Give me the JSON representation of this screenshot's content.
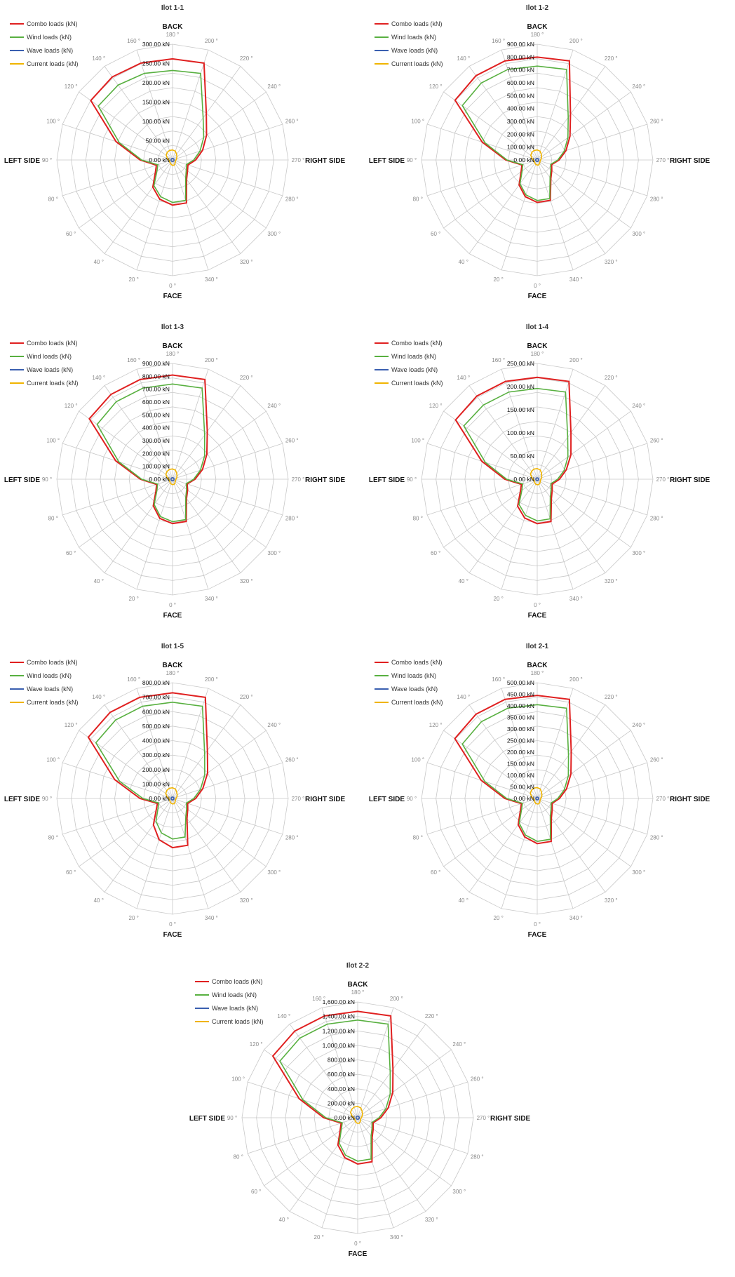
{
  "colors": {
    "combo": "#e02020",
    "wind": "#58b040",
    "wave": "#3a5fb0",
    "current": "#f0b400",
    "grid": "#c8c8c8"
  },
  "chart_data": [
    {
      "type": "radar",
      "title": "Ilot 1-1",
      "side_labels": {
        "top": "BACK",
        "bottom": "FACE",
        "left": "LEFT SIDE",
        "right": "RIGHT SIDE"
      },
      "angle_labels": [
        "0 °",
        "20 °",
        "40 °",
        "60 °",
        "80 °",
        "90 °",
        "100 °",
        "120 °",
        "140 °",
        "160 °",
        "180 °",
        "200 °",
        "220 °",
        "240 °",
        "260 °",
        "270 °",
        "280 °",
        "300 °",
        "320 °",
        "340 °"
      ],
      "radial_ticks": [
        "0.00 kN",
        "50.00 kN",
        "100.00 kN",
        "150.00 kN",
        "200.00 kN",
        "250.00 kN",
        "300.00 kN"
      ],
      "rmax": 300,
      "series": [
        {
          "name": "Combo loads (kN)",
          "color_key": "combo",
          "values": [
            117,
            107,
            87,
            55,
            44,
            84,
            154,
            262,
            266,
            264,
            262,
            264,
            149,
            109,
            82,
            60,
            42,
            48,
            62,
            117
          ]
        },
        {
          "name": "Wind loads (kN)",
          "color_key": "wind",
          "values": [
            110,
            100,
            82,
            50,
            40,
            80,
            145,
            238,
            240,
            236,
            232,
            236,
            135,
            100,
            75,
            55,
            38,
            44,
            58,
            110
          ]
        },
        {
          "name": "Wave loads (kN)",
          "color_key": "wave",
          "values": [
            4,
            4,
            4,
            4,
            4,
            4,
            4,
            4,
            4,
            4,
            4,
            4,
            4,
            4,
            4,
            4,
            4,
            4,
            4,
            4
          ]
        },
        {
          "name": "Current loads (kN)",
          "color_key": "current",
          "values": [
            14,
            12,
            10,
            9,
            8,
            10,
            14,
            20,
            24,
            26,
            26,
            24,
            18,
            14,
            11,
            9,
            8,
            9,
            11,
            14
          ]
        }
      ]
    },
    {
      "type": "radar",
      "title": "Ilot 1-2",
      "side_labels": {
        "top": "BACK",
        "bottom": "FACE",
        "left": "LEFT SIDE",
        "right": "RIGHT SIDE"
      },
      "angle_labels": [
        "0 °",
        "20 °",
        "40 °",
        "60 °",
        "80 °",
        "90 °",
        "100 °",
        "120 °",
        "140 °",
        "160 °",
        "180 °",
        "200 °",
        "220 °",
        "240 °",
        "260 °",
        "270 °",
        "280 °",
        "300 °",
        "320 °",
        "340 °"
      ],
      "radial_ticks": [
        "0.00 kN",
        "100.00 kN",
        "200.00 kN",
        "300.00 kN",
        "400.00 kN",
        "500.00 kN",
        "600.00 kN",
        "700.00 kN",
        "800.00 kN",
        "900.00 kN"
      ],
      "rmax": 900,
      "series": [
        {
          "name": "Combo loads (kN)",
          "color_key": "combo",
          "values": [
            330,
            300,
            240,
            155,
            125,
            245,
            450,
            790,
            810,
            810,
            800,
            810,
            440,
            315,
            235,
            170,
            118,
            140,
            180,
            330
          ]
        },
        {
          "name": "Wind loads (kN)",
          "color_key": "wind",
          "values": [
            315,
            285,
            228,
            145,
            118,
            235,
            425,
            720,
            740,
            740,
            730,
            740,
            410,
            295,
            220,
            160,
            110,
            130,
            170,
            315
          ]
        },
        {
          "name": "Wave loads (kN)",
          "color_key": "wave",
          "values": [
            12,
            12,
            12,
            12,
            12,
            12,
            12,
            12,
            12,
            12,
            12,
            12,
            12,
            12,
            12,
            12,
            12,
            12,
            12,
            12
          ]
        },
        {
          "name": "Current loads (kN)",
          "color_key": "current",
          "values": [
            40,
            36,
            30,
            26,
            24,
            30,
            42,
            62,
            72,
            78,
            78,
            72,
            54,
            42,
            33,
            26,
            24,
            26,
            32,
            40
          ]
        }
      ]
    },
    {
      "type": "radar",
      "title": "Ilot 1-3",
      "side_labels": {
        "top": "BACK",
        "bottom": "FACE",
        "left": "LEFT SIDE",
        "right": "RIGHT SIDE"
      },
      "angle_labels": [
        "0 °",
        "20 °",
        "40 °",
        "60 °",
        "80 °",
        "90 °",
        "100 °",
        "120 °",
        "140 °",
        "160 °",
        "180 °",
        "200 °",
        "220 °",
        "240 °",
        "260 °",
        "270 °",
        "280 °",
        "300 °",
        "320 °",
        "340 °"
      ],
      "radial_ticks": [
        "0.00 kN",
        "100.00 kN",
        "200.00 kN",
        "300.00 kN",
        "400.00 kN",
        "500.00 kN",
        "600.00 kN",
        "700.00 kN",
        "800.00 kN",
        "900.00 kN"
      ],
      "rmax": 900,
      "series": [
        {
          "name": "Combo loads (kN)",
          "color_key": "combo",
          "values": [
            345,
            320,
            255,
            160,
            130,
            250,
            465,
            800,
            815,
            815,
            810,
            815,
            460,
            330,
            245,
            175,
            120,
            145,
            185,
            345
          ]
        },
        {
          "name": "Wind loads (kN)",
          "color_key": "wind",
          "values": [
            330,
            305,
            243,
            150,
            122,
            240,
            440,
            725,
            745,
            745,
            740,
            745,
            425,
            308,
            228,
            164,
            112,
            135,
            175,
            330
          ]
        },
        {
          "name": "Wave loads (kN)",
          "color_key": "wave",
          "values": [
            12,
            12,
            12,
            12,
            12,
            12,
            12,
            12,
            12,
            12,
            12,
            12,
            12,
            12,
            12,
            12,
            12,
            12,
            12,
            12
          ]
        },
        {
          "name": "Current loads (kN)",
          "color_key": "current",
          "values": [
            42,
            38,
            32,
            27,
            25,
            31,
            44,
            64,
            74,
            80,
            80,
            74,
            56,
            43,
            34,
            27,
            25,
            27,
            33,
            42
          ]
        }
      ]
    },
    {
      "type": "radar",
      "title": "Ilot 1-4",
      "side_labels": {
        "top": "BACK",
        "bottom": "FACE",
        "left": "LEFT SIDE",
        "right": "RIGHT SIDE"
      },
      "angle_labels": [
        "0 °",
        "20 °",
        "40 °",
        "60 °",
        "80 °",
        "90 °",
        "100 °",
        "120 °",
        "140 °",
        "160 °",
        "180 °",
        "200 °",
        "220 °",
        "240 °",
        "260 °",
        "270 °",
        "280 °",
        "300 °",
        "320 °",
        "340 °"
      ],
      "radial_ticks": [
        "0.00 kN",
        "50.00 kN",
        "100.00 kN",
        "150.00 kN",
        "200.00 kN",
        "250.00 kN"
      ],
      "rmax": 250,
      "series": [
        {
          "name": "Combo loads (kN)",
          "color_key": "combo",
          "values": [
            96,
            88,
            72,
            45,
            36,
            70,
            126,
            218,
            222,
            222,
            220,
            222,
            124,
            90,
            66,
            48,
            34,
            40,
            52,
            96
          ]
        },
        {
          "name": "Wind loads (kN)",
          "color_key": "wind",
          "values": [
            90,
            82,
            67,
            41,
            33,
            66,
            118,
            196,
            198,
            198,
            196,
            198,
            112,
            82,
            61,
            44,
            31,
            37,
            48,
            90
          ]
        },
        {
          "name": "Wave loads (kN)",
          "color_key": "wave",
          "values": [
            3,
            3,
            3,
            3,
            3,
            3,
            3,
            3,
            3,
            3,
            3,
            3,
            3,
            3,
            3,
            3,
            3,
            3,
            3,
            3
          ]
        },
        {
          "name": "Current loads (kN)",
          "color_key": "current",
          "values": [
            12,
            11,
            9,
            8,
            7,
            9,
            12,
            18,
            21,
            23,
            23,
            21,
            16,
            12,
            10,
            8,
            7,
            8,
            10,
            12
          ]
        }
      ]
    },
    {
      "type": "radar",
      "title": "Ilot 1-5",
      "side_labels": {
        "top": "BACK",
        "bottom": "FACE",
        "left": "LEFT SIDE",
        "right": "RIGHT SIDE"
      },
      "angle_labels": [
        "0 °",
        "20 °",
        "40 °",
        "60 °",
        "80 °",
        "90 °",
        "100 °",
        "120 °",
        "140 °",
        "160 °",
        "180 °",
        "200 °",
        "220 °",
        "240 °",
        "260 °",
        "270 °",
        "280 °",
        "300 °",
        "320 °",
        "340 °"
      ],
      "radial_ticks": [
        "0.00 kN",
        "100.00 kN",
        "200.00 kN",
        "300.00 kN",
        "400.00 kN",
        "500.00 kN",
        "600.00 kN",
        "700.00 kN",
        "800.00 kN"
      ],
      "rmax": 800,
      "series": [
        {
          "name": "Combo loads (kN)",
          "color_key": "combo",
          "values": [
            340,
            300,
            225,
            140,
            110,
            225,
            420,
            720,
            735,
            735,
            730,
            735,
            410,
            300,
            220,
            160,
            110,
            130,
            170,
            340
          ]
        },
        {
          "name": "Wind loads (kN)",
          "color_key": "wind",
          "values": [
            280,
            250,
            195,
            125,
            100,
            205,
            385,
            655,
            670,
            670,
            665,
            670,
            378,
            275,
            203,
            147,
            101,
            120,
            156,
            280
          ]
        },
        {
          "name": "Wave loads (kN)",
          "color_key": "wave",
          "values": [
            10,
            10,
            10,
            10,
            10,
            10,
            10,
            10,
            10,
            10,
            10,
            10,
            10,
            10,
            10,
            10,
            10,
            10,
            10,
            10
          ]
        },
        {
          "name": "Current loads (kN)",
          "color_key": "current",
          "values": [
            38,
            34,
            28,
            24,
            22,
            28,
            40,
            58,
            68,
            74,
            74,
            68,
            50,
            40,
            31,
            24,
            22,
            24,
            30,
            38
          ]
        }
      ]
    },
    {
      "type": "radar",
      "title": "Ilot 2-1",
      "side_labels": {
        "top": "BACK",
        "bottom": "FACE",
        "left": "LEFT SIDE",
        "right": "RIGHT SIDE"
      },
      "angle_labels": [
        "0 °",
        "20 °",
        "40 °",
        "60 °",
        "80 °",
        "90 °",
        "100 °",
        "120 °",
        "140 °",
        "160 °",
        "180 °",
        "200 °",
        "220 °",
        "240 °",
        "260 °",
        "270 °",
        "280 °",
        "300 °",
        "320 °",
        "340 °"
      ],
      "radial_ticks": [
        "0.00 kN",
        "50.00 kN",
        "100.00 kN",
        "150.00 kN",
        "200.00 kN",
        "250.00 kN",
        "300.00 kN",
        "350.00 kN",
        "400.00 kN",
        "450.00 kN",
        "500.00 kN"
      ],
      "rmax": 500,
      "series": [
        {
          "name": "Combo loads (kN)",
          "color_key": "combo",
          "values": [
            195,
            175,
            140,
            90,
            72,
            140,
            255,
            440,
            450,
            450,
            445,
            450,
            250,
            180,
            133,
            96,
            68,
            80,
            104,
            195
          ]
        },
        {
          "name": "Wind loads (kN)",
          "color_key": "wind",
          "values": [
            185,
            166,
            132,
            84,
            67,
            132,
            238,
            400,
            410,
            410,
            405,
            410,
            230,
            166,
            123,
            89,
            63,
            74,
            96,
            185
          ]
        },
        {
          "name": "Wave loads (kN)",
          "color_key": "wave",
          "values": [
            6,
            6,
            6,
            6,
            6,
            6,
            6,
            6,
            6,
            6,
            6,
            6,
            6,
            6,
            6,
            6,
            6,
            6,
            6,
            6
          ]
        },
        {
          "name": "Current loads (kN)",
          "color_key": "current",
          "values": [
            24,
            22,
            18,
            15,
            14,
            18,
            25,
            37,
            43,
            47,
            47,
            43,
            32,
            25,
            20,
            15,
            14,
            15,
            19,
            24
          ]
        }
      ]
    },
    {
      "type": "radar",
      "title": "Ilot 2-2",
      "side_labels": {
        "top": "BACK",
        "bottom": "FACE",
        "left": "LEFT SIDE",
        "right": "RIGHT SIDE"
      },
      "angle_labels": [
        "0 °",
        "20 °",
        "40 °",
        "60 °",
        "80 °",
        "90 °",
        "100 °",
        "120 °",
        "140 °",
        "160 °",
        "180 °",
        "200 °",
        "220 °",
        "240 °",
        "260 °",
        "270 °",
        "280 °",
        "300 °",
        "320 °",
        "340 °"
      ],
      "radial_ticks": [
        "0.00 kN",
        "200.00 kN",
        "400.00 kN",
        "600.00 kN",
        "800.00 kN",
        "1,000.00 kN",
        "1,200.00 kN",
        "1,400.00 kN",
        "1,600.00 kN"
      ],
      "rmax": 1600,
      "series": [
        {
          "name": "Combo loads (kN)",
          "color_key": "combo",
          "values": [
            640,
            580,
            465,
            300,
            240,
            470,
            850,
            1450,
            1480,
            1480,
            1470,
            1480,
            830,
            600,
            445,
            320,
            225,
            265,
            340,
            640
          ]
        },
        {
          "name": "Wind loads (kN)",
          "color_key": "wind",
          "values": [
            600,
            545,
            435,
            280,
            224,
            440,
            795,
            1330,
            1360,
            1360,
            1350,
            1360,
            765,
            555,
            410,
            295,
            208,
            245,
            315,
            600
          ]
        },
        {
          "name": "Wave loads (kN)",
          "color_key": "wave",
          "values": [
            22,
            22,
            22,
            22,
            22,
            22,
            22,
            22,
            22,
            22,
            22,
            22,
            22,
            22,
            22,
            22,
            22,
            22,
            22,
            22
          ]
        },
        {
          "name": "Current loads (kN)",
          "color_key": "current",
          "values": [
            78,
            70,
            58,
            48,
            44,
            58,
            82,
            122,
            142,
            156,
            156,
            142,
            106,
            82,
            64,
            50,
            44,
            50,
            62,
            78
          ]
        }
      ]
    }
  ]
}
